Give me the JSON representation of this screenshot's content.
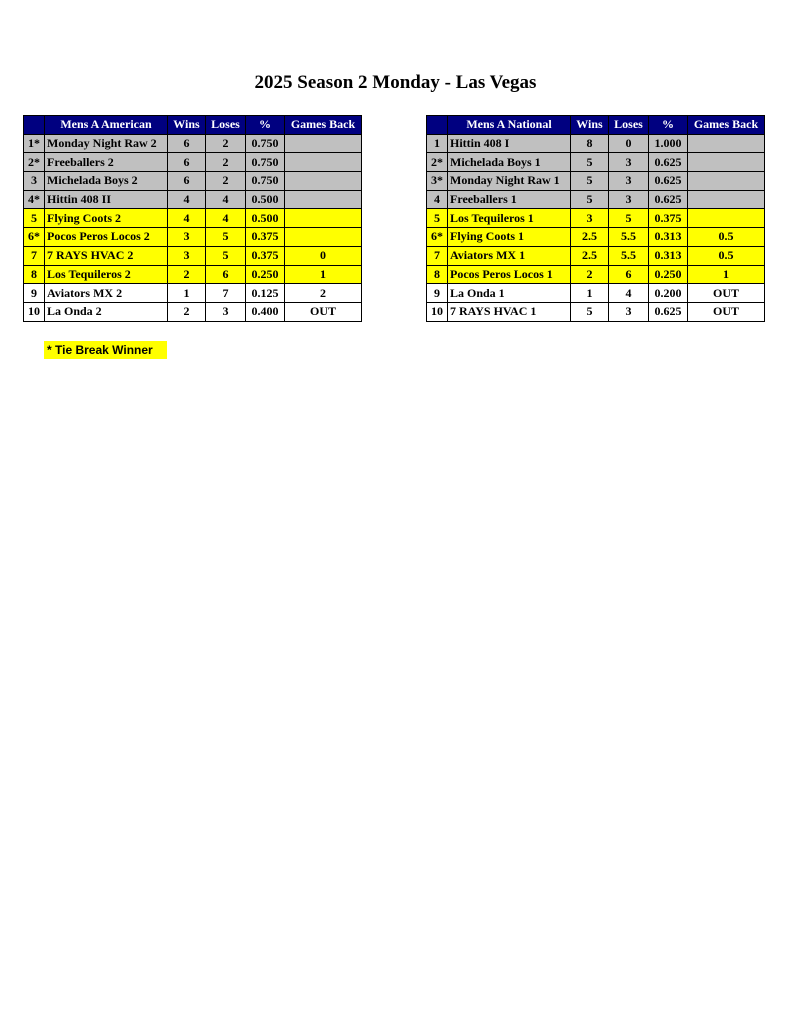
{
  "title": "2025 Season 2 Monday - Las Vegas",
  "tables": [
    {
      "header": [
        "Mens A American",
        "Wins",
        "Loses",
        "%",
        "Games Back"
      ],
      "rows": [
        [
          "1*",
          "Monday Night Raw 2",
          "6",
          "2",
          "0.750"
        ],
        [
          "2*",
          "Freeballers 2",
          "6",
          "2",
          "0.750"
        ],
        [
          "3",
          "Michelada Boys 2",
          "6",
          "2",
          "0.750"
        ],
        [
          "4*",
          "Hittin 408 II",
          "4",
          "4",
          "0.500"
        ],
        [
          "5",
          "Flying Coots 2",
          "4",
          "4",
          "0.500"
        ],
        [
          "6*",
          "Pocos Peros Locos 2",
          "3",
          "5",
          "0.375"
        ],
        [
          "7",
          "7 RAYS HVAC 2",
          "3",
          "5",
          "0.375",
          "0"
        ],
        [
          "8",
          "Los Tequileros 2",
          "2",
          "6",
          "0.250",
          "1"
        ],
        [
          "9",
          "Aviators MX 2",
          "1",
          "7",
          "0.125",
          "2"
        ],
        [
          "10",
          "La Onda 2",
          "2",
          "3",
          "0.400",
          "OUT"
        ]
      ]
    },
    {
      "header": [
        "Mens A National",
        "Wins",
        "Loses",
        "%",
        "Games Back"
      ],
      "rows": [
        [
          "1",
          "Hittin 408 I",
          "8",
          "0",
          "1.000"
        ],
        [
          "2*",
          "Michelada Boys 1",
          "5",
          "3",
          "0.625"
        ],
        [
          "3*",
          "Monday Night Raw 1",
          "5",
          "3",
          "0.625"
        ],
        [
          "4",
          "Freeballers 1",
          "5",
          "3",
          "0.625"
        ],
        [
          "5",
          "Los Tequileros 1",
          "3",
          "5",
          "0.375"
        ],
        [
          "6*",
          "Flying Coots 1",
          "2.5",
          "5.5",
          "0.313",
          "0.5"
        ],
        [
          "7",
          "Aviators MX 1",
          "2.5",
          "5.5",
          "0.313",
          "0.5"
        ],
        [
          "8",
          "Pocos Peros Locos 1",
          "2",
          "6",
          "0.250",
          "1"
        ],
        [
          "9",
          "La Onda 1",
          "1",
          "4",
          "0.200",
          "OUT"
        ],
        [
          "10",
          "7 RAYS HVAC 1",
          "5",
          "3",
          "0.625",
          "OUT"
        ]
      ]
    }
  ],
  "note": "* Tie Break Winner"
}
